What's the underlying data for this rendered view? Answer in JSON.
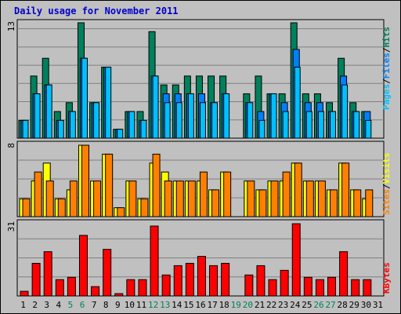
{
  "title": "Daily usage for November 2011",
  "colors": {
    "hits": "#00805c",
    "files": "#0080ff",
    "pages": "#00c0ff",
    "visits": "#ffff00",
    "sites": "#ff8000",
    "kbytes": "#ff0000",
    "weekday": "#000000",
    "weekend": "#00805c"
  },
  "chart_data": [
    {
      "type": "bar",
      "panel": "hits-files-pages",
      "ymax_label": "13",
      "ymax": 13,
      "legend": {
        "pages": "Pages",
        "files": "Files",
        "hits": "Hits",
        "sep": "/"
      },
      "categories": [
        "1",
        "2",
        "3",
        "4",
        "5",
        "6",
        "7",
        "8",
        "9",
        "10",
        "11",
        "12",
        "13",
        "14",
        "15",
        "16",
        "17",
        "18",
        "19",
        "20",
        "21",
        "22",
        "23",
        "24",
        "25",
        "26",
        "27",
        "28",
        "29",
        "30",
        "31"
      ],
      "weekend_days": [
        "5",
        "6",
        "12",
        "13",
        "19",
        "20",
        "26",
        "27"
      ],
      "series": [
        {
          "name": "Hits",
          "values": [
            2,
            7,
            9,
            3,
            4,
            13,
            4,
            8,
            1,
            3,
            3,
            12,
            6,
            6,
            7,
            7,
            7,
            7,
            0,
            5,
            7,
            5,
            5,
            13,
            5,
            5,
            4,
            9,
            4,
            3,
            0
          ]
        },
        {
          "name": "Files",
          "values": [
            2,
            5,
            6,
            2,
            3,
            9,
            4,
            8,
            1,
            3,
            2,
            7,
            5,
            5,
            5,
            5,
            4,
            5,
            0,
            4,
            3,
            5,
            4,
            10,
            4,
            4,
            3,
            7,
            3,
            3,
            0
          ]
        },
        {
          "name": "Pages",
          "values": [
            2,
            5,
            6,
            2,
            3,
            9,
            4,
            8,
            1,
            3,
            2,
            7,
            4,
            4,
            5,
            4,
            4,
            5,
            0,
            4,
            2,
            5,
            3,
            8,
            3,
            3,
            3,
            6,
            3,
            2,
            0
          ]
        }
      ]
    },
    {
      "type": "bar",
      "panel": "visits-sites",
      "ymax_label": "8",
      "ymax": 8,
      "legend": {
        "sites": "Sites",
        "visits": "Visits",
        "sep": "/"
      },
      "categories": [
        "1",
        "2",
        "3",
        "4",
        "5",
        "6",
        "7",
        "8",
        "9",
        "10",
        "11",
        "12",
        "13",
        "14",
        "15",
        "16",
        "17",
        "18",
        "19",
        "20",
        "21",
        "22",
        "23",
        "24",
        "25",
        "26",
        "27",
        "28",
        "29",
        "30",
        "31"
      ],
      "series": [
        {
          "name": "Visits",
          "values": [
            2,
            4,
            6,
            2,
            3,
            8,
            4,
            7,
            1,
            4,
            2,
            6,
            5,
            4,
            4,
            4,
            3,
            5,
            0,
            4,
            3,
            4,
            4,
            6,
            4,
            4,
            3,
            6,
            3,
            2,
            0
          ]
        },
        {
          "name": "Sites",
          "values": [
            2,
            5,
            4,
            2,
            4,
            8,
            4,
            7,
            1,
            4,
            2,
            7,
            4,
            4,
            4,
            5,
            3,
            5,
            0,
            4,
            3,
            4,
            5,
            6,
            4,
            4,
            3,
            6,
            3,
            3,
            0
          ]
        }
      ]
    },
    {
      "type": "bar",
      "panel": "kbytes",
      "ymax_label": "31",
      "ymax": 31,
      "legend": {
        "kbytes": "KBytes"
      },
      "categories": [
        "1",
        "2",
        "3",
        "4",
        "5",
        "6",
        "7",
        "8",
        "9",
        "10",
        "11",
        "12",
        "13",
        "14",
        "15",
        "16",
        "17",
        "18",
        "19",
        "20",
        "21",
        "22",
        "23",
        "24",
        "25",
        "26",
        "27",
        "28",
        "29",
        "30",
        "31"
      ],
      "series": [
        {
          "name": "KBytes",
          "values": [
            2,
            14,
            19,
            7,
            8,
            26,
            4,
            20,
            1,
            7,
            7,
            30,
            9,
            13,
            14,
            17,
            13,
            14,
            0,
            9,
            13,
            7,
            11,
            31,
            8,
            7,
            8,
            19,
            7,
            7,
            0
          ]
        }
      ]
    }
  ]
}
